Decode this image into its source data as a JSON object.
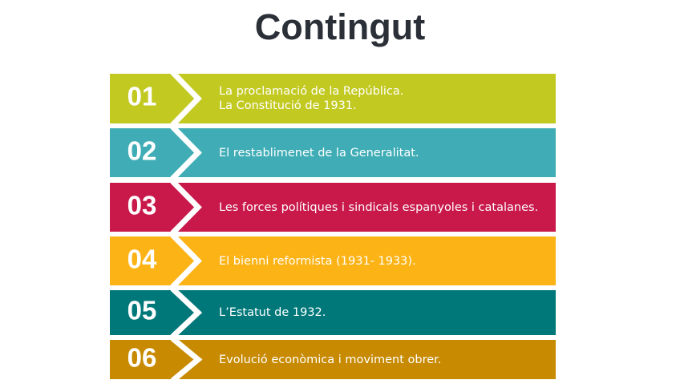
{
  "title": "Contingut",
  "items": [
    {
      "number": "01",
      "line1": "La proclamació de la República.",
      "line2": "La Constitució de 1931.",
      "color": "#c2c921"
    },
    {
      "number": "02",
      "line1": "El restablimenet de la Generalitat.",
      "color": "#40adb6"
    },
    {
      "number": "03",
      "line1": "Les forces polítiques i sindicals espanyoles i catalanes.",
      "color": "#c8194a"
    },
    {
      "number": "04",
      "line1": "El bienni reformista (1931- 1933).",
      "color": "#fbb316"
    },
    {
      "number": "05",
      "line1": "L’Estatut de 1932.",
      "color": "#00787a"
    },
    {
      "number": "06",
      "line1": "Evolució econòmica i moviment obrer.",
      "color": "#c78a00"
    }
  ]
}
